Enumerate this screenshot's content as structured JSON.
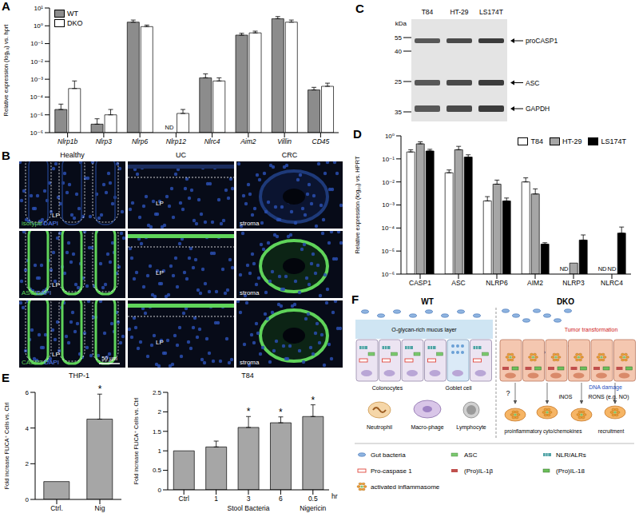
{
  "chart_data": [
    {
      "panel": "A",
      "type": "bar",
      "log": "y",
      "legend": "upper left",
      "categories": [
        "Nlrp1b",
        "Nlrp3",
        "Nlrp6",
        "Nlrp12",
        "Nlrc4",
        "Aim2",
        "Villin",
        "CD45"
      ],
      "series": [
        {
          "name": "WT",
          "color": "#8c8c8c",
          "values": [
            2e-05,
            3e-06,
            1.6,
            null,
            0.0012,
            0.3,
            2.5,
            0.00025
          ],
          "errors": [
            2e-05,
            3e-06,
            0.5,
            null,
            0.0008,
            0.08,
            0.8,
            0.0001
          ]
        },
        {
          "name": "DKO",
          "color": "#ffffff",
          "values": [
            0.0003,
            1e-05,
            0.9,
            1.2e-05,
            0.0008,
            0.4,
            1.6,
            0.0004
          ],
          "errors": [
            0.0005,
            1e-05,
            0.2,
            8e-06,
            0.0004,
            0.1,
            0.5,
            0.0002
          ]
        }
      ],
      "y_label": "Relative expression (log₁₀) vs. hprt",
      "ylim": [
        1e-06,
        10
      ],
      "yticks": [
        {
          "value": 10,
          "label": "10¹"
        },
        {
          "value": 1,
          "label": "10⁰"
        },
        {
          "value": 0.1,
          "label": "10⁻¹"
        },
        {
          "value": 0.01,
          "label": "10⁻²"
        },
        {
          "value": 0.001,
          "label": "10⁻³"
        },
        {
          "value": 0.0001,
          "label": "10⁻⁴"
        },
        {
          "value": 1e-05,
          "label": "10⁻⁵"
        },
        {
          "value": 1e-06,
          "label": "10⁻⁶"
        }
      ],
      "annotations": [
        {
          "category": "Nlrp12",
          "series": "WT",
          "text": "ND"
        }
      ]
    },
    {
      "panel": "D",
      "type": "bar",
      "log": "y",
      "legend": "upper right",
      "categories": [
        "CASP1",
        "ASC",
        "NLRP6",
        "AIM2",
        "NLRP3",
        "NLRC4"
      ],
      "series": [
        {
          "name": "T84",
          "color": "#ffffff",
          "values": [
            0.2,
            0.025,
            0.0015,
            0.01,
            null,
            null
          ],
          "errors": [
            0.05,
            0.008,
            0.0008,
            0.005,
            null,
            null
          ]
        },
        {
          "name": "HT-29",
          "color": "#a6a6a6",
          "values": [
            0.45,
            0.25,
            0.008,
            0.003,
            3e-06,
            null
          ],
          "errors": [
            0.1,
            0.1,
            0.004,
            0.002,
            null,
            null
          ]
        },
        {
          "name": "LS174T",
          "color": "#000000",
          "values": [
            0.22,
            0.12,
            0.0015,
            2e-05,
            3e-05,
            6e-05
          ],
          "errors": [
            0.04,
            0.03,
            0.0005,
            3e-06,
            2e-05,
            5e-05
          ]
        }
      ],
      "y_label": "Relative expression (log₁₀) vs. HPRT",
      "ylim": [
        1e-06,
        1
      ],
      "yticks": [
        {
          "value": 1,
          "label": "10⁰"
        },
        {
          "value": 0.1,
          "label": "10⁻¹"
        },
        {
          "value": 0.01,
          "label": "10⁻²"
        },
        {
          "value": 0.001,
          "label": "10⁻³"
        },
        {
          "value": 0.0001,
          "label": "10⁻⁴"
        },
        {
          "value": 1e-05,
          "label": "10⁻⁵"
        },
        {
          "value": 1e-06,
          "label": "10⁻⁶"
        }
      ],
      "annotations": [
        {
          "category": "NLRP3",
          "series": "T84",
          "text": "ND"
        },
        {
          "category": "NLRC4",
          "series": "T84",
          "text": "ND"
        },
        {
          "category": "NLRC4",
          "series": "HT-29",
          "text": "ND"
        }
      ]
    },
    {
      "panel": "E",
      "type": "bar",
      "title": "THP-1",
      "color": "#a6a6a6",
      "categories": [
        "Ctrl.",
        "Nig"
      ],
      "values": [
        1,
        4.5
      ],
      "errors": [
        null,
        1.4
      ],
      "y_label": "Fold increase FLICA⁺ Cells vs. Ctrl",
      "ylim": [
        0,
        6
      ],
      "yticks": [
        0,
        2,
        4,
        6
      ],
      "annotations": [
        {
          "category": "Nig",
          "text": "*"
        }
      ]
    },
    {
      "type": "bar",
      "title": "T84",
      "color": "#a6a6a6",
      "categories": [
        "Ctrl",
        "1",
        "3",
        "6",
        "0.5"
      ],
      "values": [
        1,
        1.1,
        1.6,
        1.72,
        1.88
      ],
      "errors": [
        null,
        0.15,
        0.28,
        0.15,
        0.3
      ],
      "y_label": "Fold increase FLICA⁺ Cells vs. Ctrl",
      "ylim": [
        0,
        2.5
      ],
      "yticks": [
        0,
        0.5,
        1,
        1.5,
        2,
        2.5
      ],
      "x_groups": [
        {
          "label": "Stool Bacteria",
          "categories": [
            "1",
            "3",
            "6"
          ]
        },
        {
          "label": "Nigericin",
          "categories": [
            "0.5"
          ]
        }
      ],
      "x_unit": "hr",
      "annotations": [
        {
          "category": "3",
          "text": "*"
        },
        {
          "category": "6",
          "text": "*"
        },
        {
          "category": "0.5",
          "text": "*"
        }
      ]
    }
  ],
  "panel_B": {
    "panel": "B",
    "columns": [
      "Healthy",
      "UC",
      "CRC"
    ],
    "rows": [
      {
        "stain": "isotype",
        "counter": "DAPI"
      },
      {
        "stain": "ASC",
        "counter": "DAPI"
      },
      {
        "stain": "CASP1",
        "counter": "DAPI"
      }
    ],
    "regions": [
      "LP",
      "LP",
      "stroma"
    ],
    "scale_bar": "50 µm"
  },
  "panel_C": {
    "panel": "C",
    "unit": "kDa",
    "lanes": [
      "T84",
      "HT-29",
      "LS174T"
    ],
    "markers": [
      55,
      40,
      25,
      35
    ],
    "bands": [
      "proCASP1",
      "ASC",
      "GAPDH"
    ]
  },
  "panel_F": {
    "panel": "F",
    "wt": {
      "title": "WT",
      "mucus": "O-glycan-rich mucus layer",
      "colonocytes": "Colonocytes",
      "goblet": "Goblet cell",
      "neutrophil": "Neutrophil",
      "macrophage": "Macro-phage",
      "lymphocyte": "Lymphocyte"
    },
    "dko": {
      "title": "DKO",
      "tumor": "Tumor transformation",
      "dna": "DNA damage",
      "rons": "RONS (e.g. NO)",
      "inos": "iNOS",
      "unknown": "?",
      "cytokines": "proinflammatory cyto/chemokines",
      "recruitment": "recruitment"
    },
    "legend": [
      {
        "label": "Gut bacteria",
        "color": "#8fb4e0"
      },
      {
        "label": "ASC",
        "color": "#7bc96f"
      },
      {
        "label": "NLR/ALRs",
        "color": "#4fa3a5"
      },
      {
        "label": "Pro-caspase 1",
        "color": "#e0453a"
      },
      {
        "label": "(Pro)IL-1β",
        "color": "#c0504d"
      },
      {
        "label": "(Pro)IL-18",
        "color": "#6cbf5a"
      },
      {
        "label": "activated inflammasome",
        "color": "#f0a030"
      }
    ]
  }
}
